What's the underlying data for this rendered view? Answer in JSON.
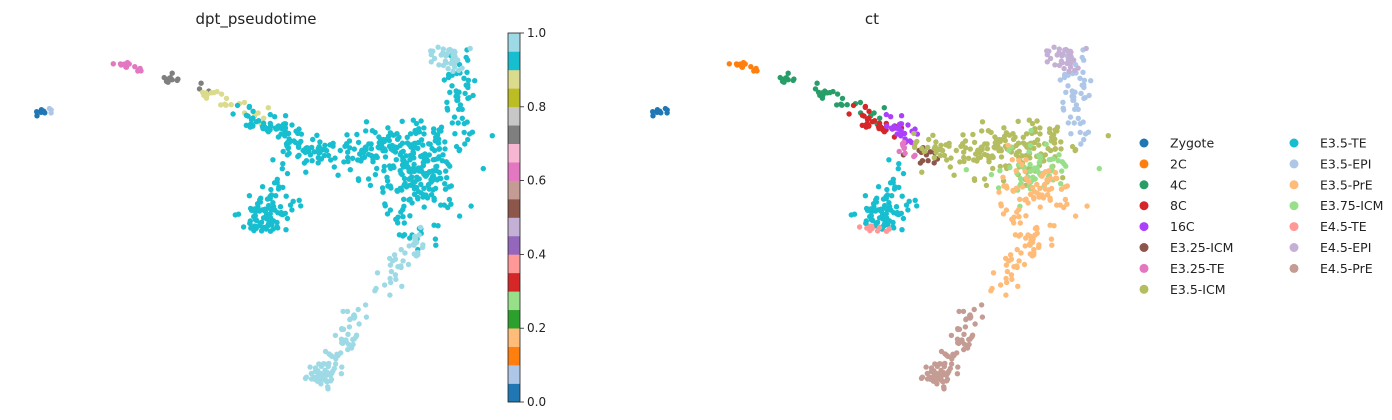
{
  "chart_data": [
    {
      "type": "scatter",
      "title": "dpt_pseudotime",
      "xlabel": "",
      "ylabel": "",
      "grid": false,
      "colorbar": {
        "ticks": [
          "0.0",
          "0.2",
          "0.4",
          "0.6",
          "0.8",
          "1.0"
        ],
        "range": [
          0,
          1
        ],
        "palette": [
          "#1f77b4",
          "#aec7e8",
          "#ff7f0e",
          "#ffbb78",
          "#2ca02c",
          "#98df8a",
          "#d62728",
          "#ff9896",
          "#9467bd",
          "#c5b0d5",
          "#8c564b",
          "#c49c94",
          "#e377c2",
          "#f7b6d2",
          "#7f7f7f",
          "#c7c7c7",
          "#bcbd22",
          "#dbdb8d",
          "#17becf",
          "#9edae5"
        ]
      }
    },
    {
      "type": "scatter",
      "title": "ct",
      "xlabel": "",
      "ylabel": "",
      "grid": false,
      "legend_position": "right",
      "categories": [
        {
          "name": "Zygote",
          "color": "#1f77b4"
        },
        {
          "name": "2C",
          "color": "#ff7f0e"
        },
        {
          "name": "4C",
          "color": "#279e68"
        },
        {
          "name": "8C",
          "color": "#d62728"
        },
        {
          "name": "16C",
          "color": "#aa40fc"
        },
        {
          "name": "E3.25-ICM",
          "color": "#8c564b"
        },
        {
          "name": "E3.25-TE",
          "color": "#e377c2"
        },
        {
          "name": "E3.5-ICM",
          "color": "#b5bd61"
        },
        {
          "name": "E3.5-TE",
          "color": "#17becf"
        },
        {
          "name": "E3.5-EPI",
          "color": "#aec7e8"
        },
        {
          "name": "E3.5-PrE",
          "color": "#ffbb78"
        },
        {
          "name": "E3.75-ICM",
          "color": "#98df8a"
        },
        {
          "name": "E4.5-TE",
          "color": "#ff9896"
        },
        {
          "name": "E4.5-EPI",
          "color": "#c5b0d5"
        },
        {
          "name": "E4.5-PrE",
          "color": "#c49c94"
        }
      ]
    }
  ]
}
